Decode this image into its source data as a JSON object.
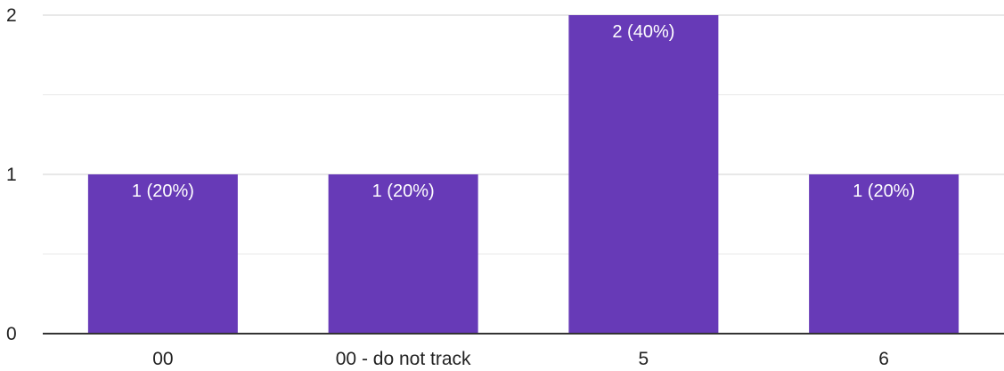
{
  "colors": {
    "bar": "#673ab7",
    "gridline": "#e8e8e8",
    "axis": "#333333",
    "text": "#222222",
    "data_label": "#ffffff"
  },
  "chart_data": {
    "type": "bar",
    "categories": [
      "00",
      "00 - do not track",
      "5",
      "6"
    ],
    "values": [
      1,
      1,
      2,
      1
    ],
    "data_labels": [
      "1 (20%)",
      "1 (20%)",
      "2 (40%)",
      "1 (20%)"
    ],
    "y_ticks": [
      "0",
      "1",
      "2"
    ],
    "ylim": [
      0,
      2
    ],
    "title": "",
    "xlabel": "",
    "ylabel": "",
    "grid": true,
    "legend": "none"
  }
}
